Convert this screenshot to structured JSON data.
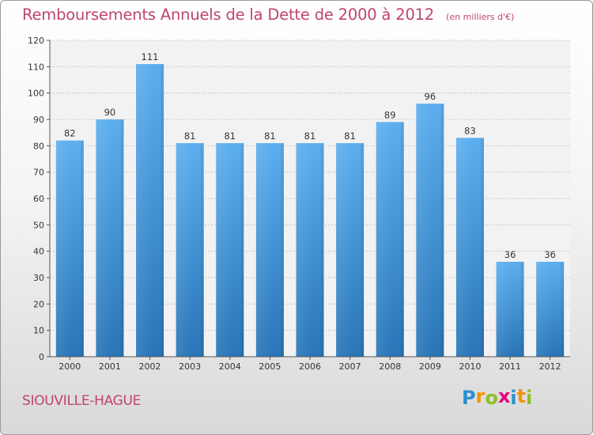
{
  "chart_data": {
    "type": "bar",
    "title": "Remboursements Annuels de la Dette de 2000 à 2012",
    "unit": "(en milliers d'€)",
    "categories": [
      "2000",
      "2001",
      "2002",
      "2003",
      "2004",
      "2005",
      "2006",
      "2007",
      "2008",
      "2009",
      "2010",
      "2011",
      "2012"
    ],
    "values": [
      82,
      90,
      111,
      81,
      81,
      81,
      81,
      81,
      89,
      96,
      83,
      36,
      36
    ],
    "ylim": [
      0,
      120
    ],
    "yticks": [
      0,
      10,
      20,
      30,
      40,
      50,
      60,
      70,
      80,
      90,
      100,
      110,
      120
    ],
    "grid": true,
    "legend": "none",
    "bar_color": "#3a8fd6"
  },
  "footer": {
    "commune": "SIOUVILLE-HAGUE"
  },
  "logo": {
    "letters": [
      "P",
      "r",
      "o",
      "x",
      "i",
      "t",
      "i"
    ],
    "colors": [
      "#2a8fd0",
      "#f29400",
      "#8cbf26",
      "#e3007e",
      "#2a8fd0",
      "#f29400",
      "#8cbf26"
    ]
  }
}
